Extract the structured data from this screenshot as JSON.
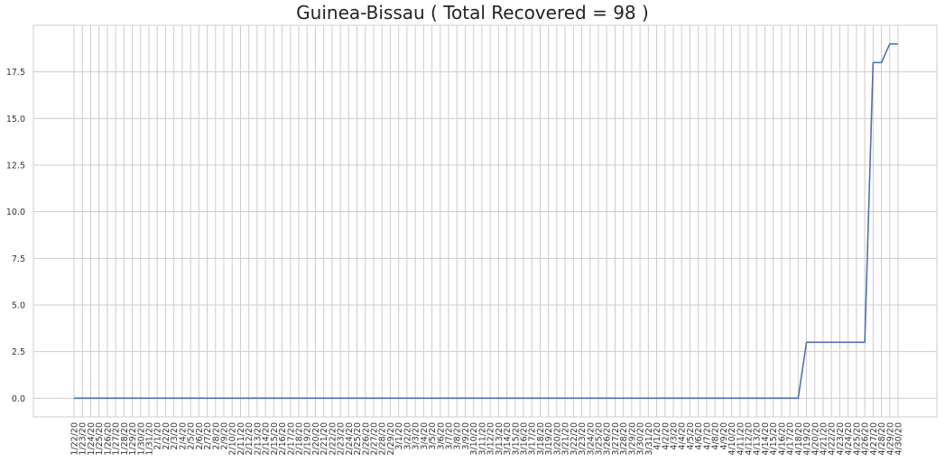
{
  "chart_data": {
    "type": "line",
    "title": "Guinea-Bissau ( Total Recovered = 98 )",
    "xlabel": "",
    "ylabel": "",
    "ylim": [
      -1.0,
      20.0
    ],
    "yticks": [
      "0.0",
      "2.5",
      "5.0",
      "7.5",
      "10.0",
      "12.5",
      "15.0",
      "17.5"
    ],
    "grid": true,
    "colors": {
      "line": "#4c72b0",
      "grid": "#cccccc",
      "frame": "#cccccc"
    },
    "x": [
      "1/22/20",
      "1/23/20",
      "1/24/20",
      "1/25/20",
      "1/26/20",
      "1/27/20",
      "1/28/20",
      "1/29/20",
      "1/30/20",
      "1/31/20",
      "2/1/20",
      "2/2/20",
      "2/3/20",
      "2/4/20",
      "2/5/20",
      "2/6/20",
      "2/7/20",
      "2/8/20",
      "2/9/20",
      "2/10/20",
      "2/11/20",
      "2/12/20",
      "2/13/20",
      "2/14/20",
      "2/15/20",
      "2/16/20",
      "2/17/20",
      "2/18/20",
      "2/19/20",
      "2/20/20",
      "2/21/20",
      "2/22/20",
      "2/23/20",
      "2/24/20",
      "2/25/20",
      "2/26/20",
      "2/27/20",
      "2/28/20",
      "2/29/20",
      "3/1/20",
      "3/2/20",
      "3/3/20",
      "3/4/20",
      "3/5/20",
      "3/6/20",
      "3/7/20",
      "3/8/20",
      "3/9/20",
      "3/10/20",
      "3/11/20",
      "3/12/20",
      "3/13/20",
      "3/14/20",
      "3/15/20",
      "3/16/20",
      "3/17/20",
      "3/18/20",
      "3/19/20",
      "3/20/20",
      "3/21/20",
      "3/22/20",
      "3/23/20",
      "3/24/20",
      "3/25/20",
      "3/26/20",
      "3/27/20",
      "3/28/20",
      "3/29/20",
      "3/30/20",
      "3/31/20",
      "4/1/20",
      "4/2/20",
      "4/3/20",
      "4/4/20",
      "4/5/20",
      "4/6/20",
      "4/7/20",
      "4/8/20",
      "4/9/20",
      "4/10/20",
      "4/11/20",
      "4/12/20",
      "4/13/20",
      "4/14/20",
      "4/15/20",
      "4/16/20",
      "4/17/20",
      "4/18/20",
      "4/19/20",
      "4/20/20",
      "4/21/20",
      "4/22/20",
      "4/23/20",
      "4/24/20",
      "4/25/20",
      "4/26/20",
      "4/27/20",
      "4/28/20",
      "4/29/20",
      "4/30/20"
    ],
    "series": [
      {
        "values": [
          0,
          0,
          0,
          0,
          0,
          0,
          0,
          0,
          0,
          0,
          0,
          0,
          0,
          0,
          0,
          0,
          0,
          0,
          0,
          0,
          0,
          0,
          0,
          0,
          0,
          0,
          0,
          0,
          0,
          0,
          0,
          0,
          0,
          0,
          0,
          0,
          0,
          0,
          0,
          0,
          0,
          0,
          0,
          0,
          0,
          0,
          0,
          0,
          0,
          0,
          0,
          0,
          0,
          0,
          0,
          0,
          0,
          0,
          0,
          0,
          0,
          0,
          0,
          0,
          0,
          0,
          0,
          0,
          0,
          0,
          0,
          0,
          0,
          0,
          0,
          0,
          0,
          0,
          0,
          0,
          0,
          0,
          0,
          0,
          0,
          0,
          0,
          0,
          3,
          3,
          3,
          3,
          3,
          3,
          3,
          3,
          18,
          18,
          19,
          19
        ]
      }
    ]
  }
}
